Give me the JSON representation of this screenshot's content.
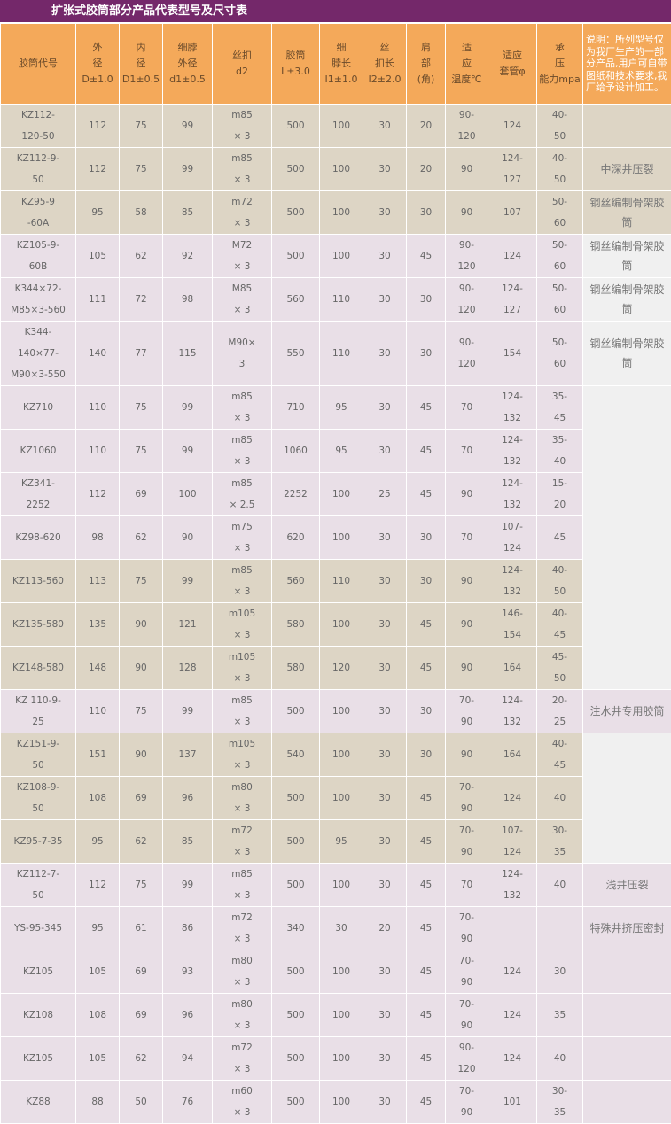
{
  "title": "扩张式胶筒部分产品代表型号及尺寸表",
  "colors": {
    "title_bar": "#74286a",
    "header": "#f4a95a",
    "row_tan": "#ddd5c5",
    "row_pink": "#e9dfe7",
    "remark_grey": "#f0f0f0"
  },
  "headers": [
    "胶筒代号",
    "外\n径\nD±1.0",
    "内\n径\nD1±0.5",
    "细脖\n外径\nd1±0.5",
    "丝扣\nd2",
    "胶筒\nL±3.0",
    "细\n脖长\nI1±1.0",
    "丝\n扣长\nI2±2.0",
    "肩\n部\n(角)",
    "适\n应\n温度℃",
    "适应\n套管φ",
    "承\n压\n能力mpa",
    "说明：所列型号仅为我厂生产的一部分产品,用户可自带图纸和技术要求,我厂给予设计加工。"
  ],
  "rows": [
    {
      "tone": "tan",
      "cells": [
        "KZ112-\n120-50",
        "112",
        "75",
        "99",
        "m85\n× 3",
        "500",
        "100",
        "30",
        "20",
        "90-\n120",
        "124",
        "40-\n50"
      ],
      "remark": ""
    },
    {
      "tone": "tan",
      "cells": [
        "KZ112-9-\n50",
        "112",
        "75",
        "99",
        "m85\n× 3",
        "500",
        "100",
        "30",
        "20",
        "90",
        "124-\n127",
        "40-\n50"
      ],
      "remark": "中深井压裂"
    },
    {
      "tone": "tan",
      "cells": [
        "KZ95-9\n-60A",
        "95",
        "58",
        "85",
        "m72\n× 3",
        "500",
        "100",
        "30",
        "30",
        "90",
        "107",
        "50-\n60"
      ],
      "remark": "钢丝编制骨架胶筒"
    },
    {
      "tone": "pink",
      "cells": [
        "KZ105-9-\n60B",
        "105",
        "62",
        "92",
        "M72\n× 3",
        "500",
        "100",
        "30",
        "45",
        "90-\n120",
        "124",
        "50-\n60"
      ],
      "remark": "钢丝编制骨架胶筒"
    },
    {
      "tone": "pink",
      "cells": [
        "K344×72-\nM85×3-560",
        "111",
        "72",
        "98",
        "M85\n× 3",
        "560",
        "110",
        "30",
        "30",
        "90-\n120",
        "124-\n127",
        "50-\n60"
      ],
      "remark": "钢丝编制骨架胶筒"
    },
    {
      "tone": "pink",
      "cells": [
        "K344-\n140×77-\nM90×3-550",
        "140",
        "77",
        "115",
        "M90×\n3",
        "550",
        "110",
        "30",
        "30",
        "90-\n120",
        "154",
        "50-\n60"
      ],
      "remark": "钢丝编制骨架胶筒"
    },
    {
      "tone": "pink",
      "cells": [
        "KZ710",
        "110",
        "75",
        "99",
        "m85\n× 3",
        "710",
        "95",
        "30",
        "45",
        "70",
        "124-\n132",
        "35-\n45"
      ],
      "remark": ""
    },
    {
      "tone": "pink",
      "cells": [
        "KZ1060",
        "110",
        "75",
        "99",
        "m85\n× 3",
        "1060",
        "95",
        "30",
        "45",
        "70",
        "124-\n132",
        "35-\n40"
      ],
      "remark": ""
    },
    {
      "tone": "pink",
      "cells": [
        "KZ341-\n2252",
        "112",
        "69",
        "100",
        "m85\n× 2.5",
        "2252",
        "100",
        "25",
        "45",
        "90",
        "124-\n132",
        "15-\n20"
      ],
      "remark": ""
    },
    {
      "tone": "pink",
      "cells": [
        "KZ98-620",
        "98",
        "62",
        "90",
        "m75\n× 3",
        "620",
        "100",
        "30",
        "30",
        "70",
        "107-\n124",
        "45"
      ],
      "remark": ""
    },
    {
      "tone": "tan",
      "cells": [
        "KZ113-560",
        "113",
        "75",
        "99",
        "m85\n× 3",
        "560",
        "110",
        "30",
        "30",
        "90",
        "124-\n132",
        "40-\n50"
      ],
      "remark": ""
    },
    {
      "tone": "tan",
      "cells": [
        "KZ135-580",
        "135",
        "90",
        "121",
        "m105\n× 3",
        "580",
        "100",
        "30",
        "45",
        "90",
        "146-\n154",
        "40-\n45"
      ],
      "remark": ""
    },
    {
      "tone": "tan",
      "cells": [
        "KZ148-580",
        "148",
        "90",
        "128",
        "m105\n× 3",
        "580",
        "120",
        "30",
        "45",
        "90",
        "164",
        "45-\n50"
      ],
      "remark": ""
    },
    {
      "tone": "pink",
      "cells": [
        "KZ 110-9-\n25",
        "110",
        "75",
        "99",
        "m85\n× 3",
        "500",
        "100",
        "30",
        "30",
        "70-\n90",
        "124-\n132",
        "20-\n25"
      ],
      "remark": "注水井专用胶筒"
    },
    {
      "tone": "tan",
      "cells": [
        "KZ151-9-\n50",
        "151",
        "90",
        "137",
        "m105\n× 3",
        "540",
        "100",
        "30",
        "30",
        "90",
        "164",
        "40-\n45"
      ],
      "remark": ""
    },
    {
      "tone": "tan",
      "cells": [
        "KZ108-9-\n50",
        "108",
        "69",
        "96",
        "m80\n× 3",
        "500",
        "100",
        "30",
        "45",
        "70-\n90",
        "124",
        "40"
      ],
      "remark": ""
    },
    {
      "tone": "tan",
      "cells": [
        "KZ95-7-35",
        "95",
        "62",
        "85",
        "m72\n× 3",
        "500",
        "95",
        "30",
        "45",
        "70-\n90",
        "107-\n124",
        "30-\n35"
      ],
      "remark": ""
    },
    {
      "tone": "pink",
      "cells": [
        "KZ112-7-\n50",
        "112",
        "75",
        "99",
        "m85\n× 3",
        "500",
        "100",
        "30",
        "45",
        "70",
        "124-\n132",
        "40"
      ],
      "remark": "浅井压裂"
    },
    {
      "tone": "pink",
      "cells": [
        "YS-95-345",
        "95",
        "61",
        "86",
        "m72\n× 3",
        "340",
        "30",
        "20",
        "45",
        "70-\n90",
        "",
        ""
      ],
      "remark": "特殊井挤压密封"
    },
    {
      "tone": "pink",
      "cells": [
        "KZ105",
        "105",
        "69",
        "93",
        "m80\n× 3",
        "500",
        "100",
        "30",
        "45",
        "70-\n90",
        "124",
        "30"
      ],
      "remark": ""
    },
    {
      "tone": "pink",
      "cells": [
        "KZ108",
        "108",
        "69",
        "96",
        "m80\n× 3",
        "500",
        "100",
        "30",
        "45",
        "70-\n90",
        "124",
        "35"
      ],
      "remark": ""
    },
    {
      "tone": "pink",
      "cells": [
        "KZ105",
        "105",
        "62",
        "94",
        "m72\n× 3",
        "500",
        "100",
        "30",
        "45",
        "90-\n120",
        "124",
        "40"
      ],
      "remark": ""
    },
    {
      "tone": "pink",
      "cells": [
        "KZ88",
        "88",
        "50",
        "76",
        "m60\n× 3",
        "500",
        "100",
        "30",
        "45",
        "70-\n90",
        "101",
        "30-\n35"
      ],
      "remark": ""
    }
  ]
}
